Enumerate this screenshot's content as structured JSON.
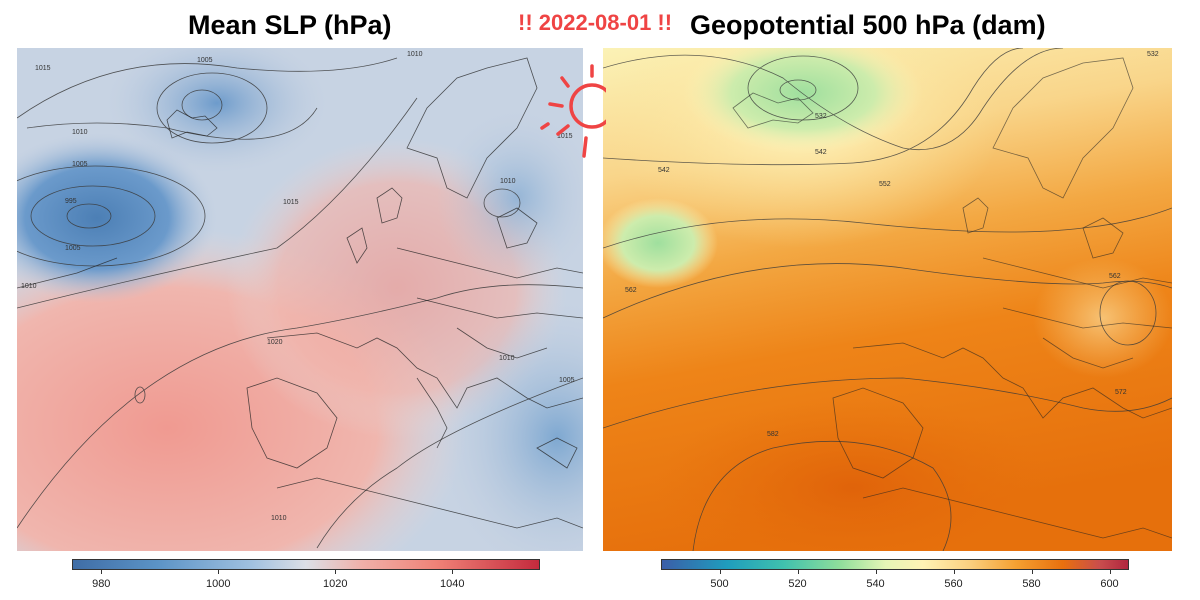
{
  "figure": {
    "date_label": "!! 2022-08-01 !!",
    "left_panel": {
      "title": "Mean SLP (hPa)",
      "colorbar_ticks": [
        "980",
        "1000",
        "1020",
        "1040"
      ],
      "colorbar_range": [
        975,
        1055
      ],
      "contour_labels": [
        "1015",
        "1005",
        "1010",
        "1005",
        "995",
        "1005",
        "1010",
        "1015",
        "1010",
        "1020",
        "1010",
        "1010",
        "1005",
        "1010",
        "1015"
      ]
    },
    "right_panel": {
      "title": "Geopotential 500 hPa (dam)",
      "colorbar_ticks": [
        "500",
        "520",
        "540",
        "560",
        "580",
        "600"
      ],
      "colorbar_range": [
        485,
        605
      ],
      "contour_labels": [
        "532",
        "542",
        "542",
        "552",
        "562",
        "562",
        "572",
        "582",
        "532"
      ]
    },
    "colors": {
      "date_accent": "#ef4444",
      "slp_low": "#3f6da6",
      "slp_high": "#c42a3d",
      "z500_low": "#3b5ea8",
      "z500_high": "#b0263f"
    },
    "icons": [
      "sun-doodle-icon"
    ]
  }
}
